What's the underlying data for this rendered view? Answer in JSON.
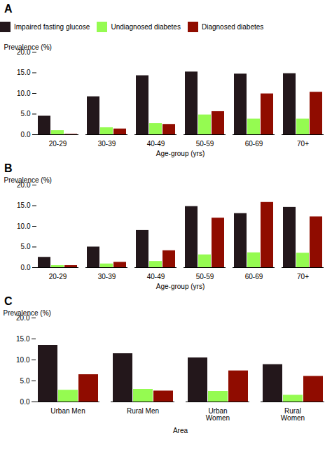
{
  "chart_data": [
    {
      "type": "bar",
      "title": "A",
      "categories": [
        "20-29",
        "30-39",
        "40-49",
        "50-59",
        "60-69",
        "70+"
      ],
      "series": [
        {
          "name": "Impaired fasting glucose",
          "values": [
            4.5,
            9.2,
            14.3,
            15.2,
            14.7,
            14.8
          ]
        },
        {
          "name": "Undiagnosed diabetes",
          "values": [
            1.0,
            1.7,
            2.7,
            4.8,
            3.8,
            3.8
          ]
        },
        {
          "name": "Diagnosed diabetes",
          "values": [
            0.1,
            1.4,
            2.5,
            5.6,
            9.9,
            10.3
          ]
        }
      ],
      "xlabel": "Age-group (yrs)",
      "ylabel": "Prevalence (%)",
      "ylim": [
        0,
        20.0
      ],
      "yticks": [
        {
          "value": 0.0,
          "label": "0.0"
        },
        {
          "value": 5.0,
          "label": "5.0"
        },
        {
          "value": 10.0,
          "label": "10.0"
        },
        {
          "value": 15.0,
          "label": "15.0"
        },
        {
          "value": 20.0,
          "label": "20.0"
        }
      ],
      "legend": "upper left"
    },
    {
      "type": "bar",
      "title": "B",
      "categories": [
        "20-29",
        "30-39",
        "40-49",
        "50-59",
        "60-69",
        "70+"
      ],
      "series": [
        {
          "name": "Impaired fasting glucose",
          "values": [
            2.5,
            5.0,
            9.0,
            14.8,
            13.1,
            14.6
          ]
        },
        {
          "name": "Undiagnosed diabetes",
          "values": [
            0.5,
            0.9,
            1.5,
            3.1,
            3.6,
            3.5
          ]
        },
        {
          "name": "Diagnosed diabetes",
          "values": [
            0.5,
            1.3,
            4.1,
            12.0,
            15.8,
            12.3
          ]
        }
      ],
      "xlabel": "Age-group (yrs)",
      "ylabel": "Prevalence (%)",
      "ylim": [
        0,
        20.0
      ],
      "yticks": [
        {
          "value": 0.0,
          "label": "0.0"
        },
        {
          "value": 5.0,
          "label": "5.0"
        },
        {
          "value": 10.0,
          "label": "10.0"
        },
        {
          "value": 15.0,
          "label": "15.0"
        },
        {
          "value": 20.0,
          "label": "20.0"
        }
      ]
    },
    {
      "type": "bar",
      "title": "C",
      "categories": [
        "Urban Men",
        "Rural Men",
        "Urban\nWomen",
        "Rural\nWomen"
      ],
      "series": [
        {
          "name": "Impaired fasting glucose",
          "values": [
            13.5,
            11.5,
            10.5,
            8.9
          ]
        },
        {
          "name": "Undiagnosed diabetes",
          "values": [
            2.8,
            3.0,
            2.5,
            1.6
          ]
        },
        {
          "name": "Diagnosed diabetes",
          "values": [
            6.5,
            2.6,
            7.4,
            6.1
          ]
        }
      ],
      "xlabel": "Area",
      "ylabel": "Prevalence (%)",
      "ylim": [
        0,
        20.0
      ],
      "yticks": [
        {
          "value": 0.0,
          "label": "0.0"
        },
        {
          "value": 5.0,
          "label": "5.0"
        },
        {
          "value": 10.0,
          "label": "10.0"
        },
        {
          "value": 15.0,
          "label": "15.0"
        },
        {
          "value": 20.0,
          "label": "20.0"
        }
      ]
    }
  ]
}
